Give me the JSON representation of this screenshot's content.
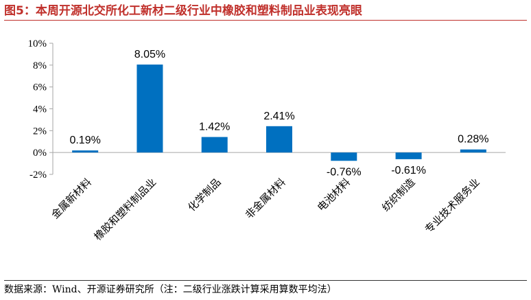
{
  "figure": {
    "title": "图5：本周开源北交所化工新材二级行业中橡胶和塑料制品业表现亮眼",
    "source": "数据来源：Wind、开源证券研究所（注：二级行业涨跌计算采用算数平均法）"
  },
  "chart_data": {
    "type": "bar",
    "title": "",
    "xlabel": "",
    "ylabel": "",
    "categories": [
      "金属新材料",
      "橡胶和塑料制品业",
      "化学制品",
      "非金属材料",
      "电池材料",
      "纺织制造",
      "专业技术服务业"
    ],
    "values": [
      0.19,
      8.05,
      1.42,
      2.41,
      -0.76,
      -0.61,
      0.28
    ],
    "data_labels": [
      "0.19%",
      "8.05%",
      "1.42%",
      "2.41%",
      "-0.76%",
      "-0.61%",
      "0.28%"
    ],
    "ylim": [
      -2,
      10
    ],
    "yticks": [
      10,
      8,
      6,
      4,
      2,
      0,
      -2
    ],
    "ytick_labels": [
      "10%",
      "8%",
      "6%",
      "4%",
      "2%",
      "0%",
      "-2%"
    ],
    "grid": false,
    "legend": "none",
    "bar_color": "#0070C0",
    "axis_color": "#A6A6A6"
  }
}
